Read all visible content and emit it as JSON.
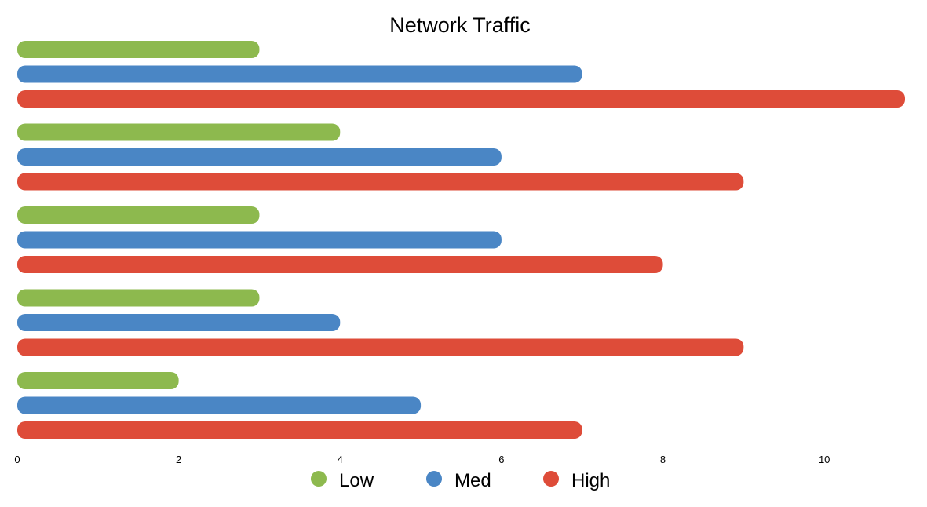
{
  "chart_data": {
    "type": "bar",
    "orientation": "horizontal",
    "title": "Network Traffic",
    "xlabel": "",
    "ylabel": "",
    "xlim": [
      0,
      11
    ],
    "x_ticks": [
      "0",
      "2",
      "4",
      "6",
      "8",
      "10"
    ],
    "grid": false,
    "legend_position": "bottom",
    "series": [
      {
        "name": "Low",
        "color": "#8db94e",
        "values": [
          3,
          4,
          3,
          3,
          2
        ]
      },
      {
        "name": "Med",
        "color": "#4a86c5",
        "values": [
          7,
          6,
          6,
          4,
          5
        ]
      },
      {
        "name": "High",
        "color": "#de4c39",
        "values": [
          11,
          9,
          8,
          9,
          7
        ]
      }
    ]
  }
}
